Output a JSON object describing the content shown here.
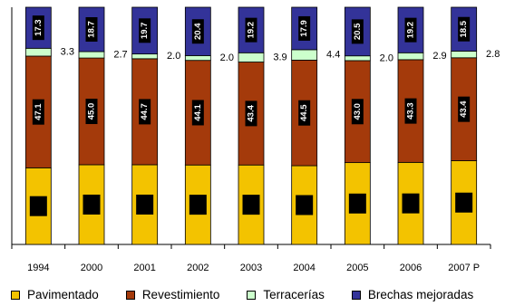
{
  "chart_data": {
    "type": "bar",
    "stacked": true,
    "categories": [
      "1994",
      "2000",
      "2001",
      "2002",
      "2003",
      "2004",
      "2005",
      "2006",
      "2007 P"
    ],
    "ylim": [
      0,
      100
    ],
    "grid": false,
    "legend_position": "bottom",
    "series": [
      {
        "name": "Pavimentado",
        "color": "#F3C300",
        "values": [
          32.3,
          33.6,
          33.6,
          33.5,
          33.5,
          33.2,
          34.5,
          34.6,
          35.3
        ]
      },
      {
        "name": "Revestimiento",
        "color": "#A43A0B",
        "values": [
          47.1,
          45.0,
          44.7,
          44.1,
          43.4,
          44.5,
          43.0,
          43.3,
          43.4
        ],
        "data_labels": [
          "47.1",
          "45.0",
          "44.7",
          "44.1",
          "43.4",
          "44.5",
          "43.0",
          "43.3",
          "43.4"
        ]
      },
      {
        "name": "Terracerías",
        "color": "#CCFFCC",
        "values": [
          3.3,
          2.7,
          2.0,
          2.0,
          3.9,
          4.4,
          2.0,
          2.9,
          2.8
        ],
        "data_labels": [
          "3.3",
          "2.7",
          "2.0",
          "2.0",
          "3.9",
          "4.4",
          "2.0",
          "2.9",
          "2.8"
        ]
      },
      {
        "name": "Brechas mejoradas",
        "color": "#333399",
        "values": [
          17.3,
          18.7,
          19.7,
          20.4,
          19.2,
          17.9,
          20.5,
          19.2,
          18.5
        ],
        "data_labels": [
          "17.3",
          "18.7",
          "19.7",
          "20.4",
          "19.2",
          "17.9",
          "20.5",
          "19.2",
          "18.5"
        ]
      }
    ]
  }
}
